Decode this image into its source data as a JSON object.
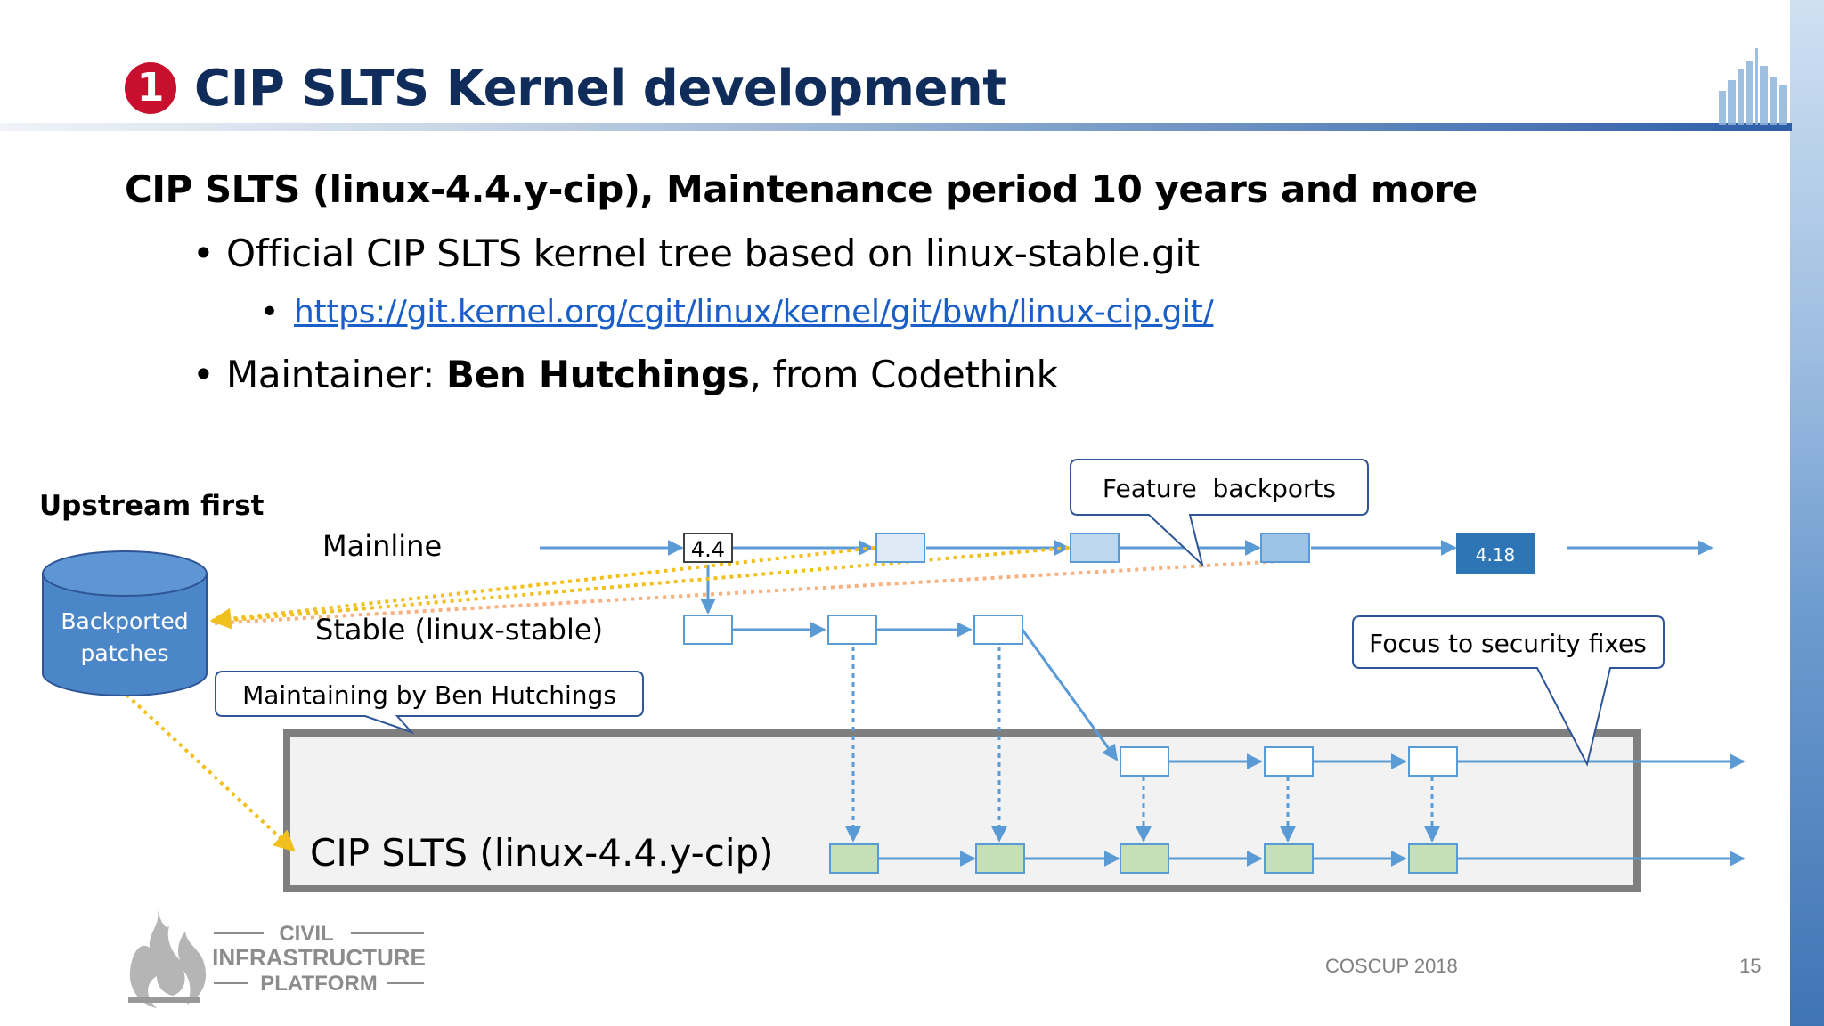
{
  "slide": {
    "number_badge": "1",
    "title": "CIP SLTS Kernel development",
    "heading": "CIP SLTS (linux-4.4.y-cip), Maintenance period 10 years and more",
    "bullets": {
      "official_tree": "Official CIP SLTS kernel tree based on linux-stable.git",
      "url": "https://git.kernel.org/cgit/linux/kernel/git/bwh/linux-cip.git/",
      "maintainer_prefix": "Maintainer: ",
      "maintainer_name": "Ben Hutchings",
      "maintainer_suffix": ", from Codethink"
    }
  },
  "diagram": {
    "upstream_first": "Upstream first",
    "backported_line1": "Backported",
    "backported_line2": "patches",
    "mainline_label": "Mainline",
    "stable_label": "Stable (linux-stable)",
    "version_start": "4.4",
    "version_end": "4.18",
    "callout_feature": "Feature  backports",
    "callout_security": "Focus to security fixes",
    "callout_maintaining": "Maintaining by Ben Hutchings",
    "cip_label": "CIP SLTS (linux-4.4.y-cip)",
    "colors": {
      "line": "#5b9bd5",
      "cylinder": "#4a86c8",
      "commit_blue": "#9dc3e6",
      "commit_light": "#deebf7",
      "commit_dark": "#2e75b6",
      "commit_green": "#c5e0b4",
      "dotted_yellow": "#f2c01e",
      "dotted_orange": "#f4b183",
      "cip_frame": "#7f7f7f",
      "cip_fill": "#f2f2f2"
    }
  },
  "footer": {
    "brand_line1": "CIVIL",
    "brand_line2": "INFRASTRUCTURE",
    "brand_line3": "PLATFORM",
    "event": "COSCUP 2018",
    "page": "15"
  }
}
